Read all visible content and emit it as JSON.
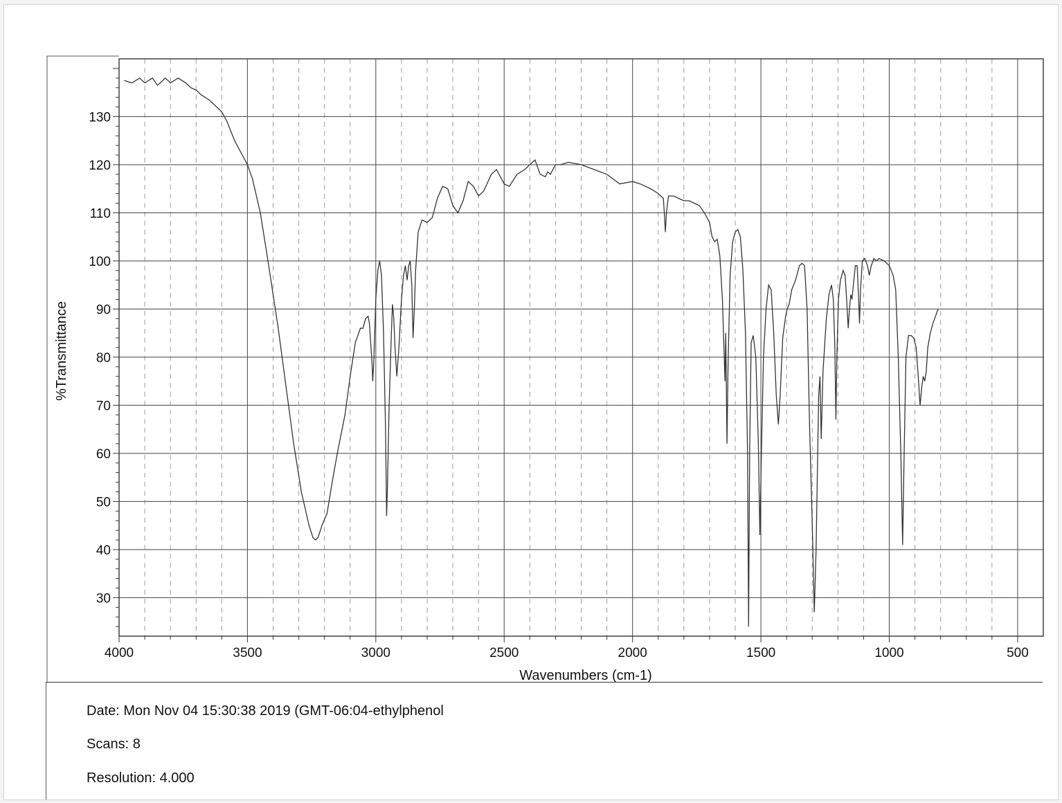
{
  "chart_data": {
    "type": "line",
    "title": "",
    "xlabel": "Wavenumbers (cm-1)",
    "ylabel": "%Transmittance",
    "xlim": [
      4000,
      400
    ],
    "ylim": [
      22,
      142
    ],
    "x_ticks": [
      4000,
      3500,
      3000,
      2500,
      2000,
      1500,
      1000,
      500
    ],
    "y_ticks": [
      30,
      40,
      50,
      60,
      70,
      80,
      90,
      100,
      110,
      120,
      130
    ],
    "grid": true,
    "x_reversed": true,
    "series": [
      {
        "color": "#333333",
        "points": [
          [
            3980,
            137.5
          ],
          [
            3950,
            137
          ],
          [
            3920,
            138
          ],
          [
            3900,
            137
          ],
          [
            3870,
            138
          ],
          [
            3850,
            136.5
          ],
          [
            3820,
            138
          ],
          [
            3800,
            137
          ],
          [
            3770,
            138
          ],
          [
            3740,
            137
          ],
          [
            3720,
            136
          ],
          [
            3700,
            135.5
          ],
          [
            3680,
            134.5
          ],
          [
            3650,
            133.5
          ],
          [
            3620,
            132
          ],
          [
            3600,
            131
          ],
          [
            3580,
            129
          ],
          [
            3550,
            125
          ],
          [
            3520,
            122
          ],
          [
            3500,
            120
          ],
          [
            3480,
            117
          ],
          [
            3450,
            110
          ],
          [
            3420,
            100
          ],
          [
            3380,
            86
          ],
          [
            3350,
            74
          ],
          [
            3320,
            62
          ],
          [
            3290,
            52
          ],
          [
            3260,
            45
          ],
          [
            3245,
            42.5
          ],
          [
            3235,
            42
          ],
          [
            3225,
            42.5
          ],
          [
            3210,
            45
          ],
          [
            3190,
            47.5
          ],
          [
            3170,
            54
          ],
          [
            3150,
            60
          ],
          [
            3120,
            68
          ],
          [
            3100,
            76
          ],
          [
            3080,
            83
          ],
          [
            3060,
            86
          ],
          [
            3050,
            86
          ],
          [
            3040,
            88
          ],
          [
            3030,
            88.5
          ],
          [
            3025,
            87
          ],
          [
            3020,
            83
          ],
          [
            3015,
            79
          ],
          [
            3012,
            75
          ],
          [
            3008,
            79
          ],
          [
            3000,
            92
          ],
          [
            2992,
            98
          ],
          [
            2985,
            100
          ],
          [
            2978,
            97
          ],
          [
            2970,
            85
          ],
          [
            2962,
            65
          ],
          [
            2958,
            47
          ],
          [
            2955,
            52
          ],
          [
            2948,
            70
          ],
          [
            2940,
            84
          ],
          [
            2935,
            91
          ],
          [
            2930,
            88
          ],
          [
            2925,
            82
          ],
          [
            2918,
            76
          ],
          [
            2910,
            82
          ],
          [
            2900,
            92
          ],
          [
            2892,
            97
          ],
          [
            2885,
            99
          ],
          [
            2878,
            96
          ],
          [
            2872,
            99
          ],
          [
            2866,
            100
          ],
          [
            2860,
            95
          ],
          [
            2855,
            84
          ],
          [
            2850,
            90
          ],
          [
            2845,
            98
          ],
          [
            2835,
            106
          ],
          [
            2820,
            108.5
          ],
          [
            2800,
            108
          ],
          [
            2780,
            109
          ],
          [
            2760,
            113
          ],
          [
            2740,
            115.5
          ],
          [
            2720,
            115
          ],
          [
            2700,
            111.5
          ],
          [
            2680,
            110
          ],
          [
            2660,
            112.5
          ],
          [
            2640,
            116.5
          ],
          [
            2620,
            115.5
          ],
          [
            2600,
            113.5
          ],
          [
            2580,
            114.5
          ],
          [
            2550,
            118
          ],
          [
            2530,
            119
          ],
          [
            2500,
            116
          ],
          [
            2480,
            115.5
          ],
          [
            2450,
            118
          ],
          [
            2420,
            119
          ],
          [
            2400,
            120
          ],
          [
            2380,
            121
          ],
          [
            2360,
            118
          ],
          [
            2340,
            117.5
          ],
          [
            2330,
            118.5
          ],
          [
            2320,
            118
          ],
          [
            2300,
            120
          ],
          [
            2280,
            120
          ],
          [
            2250,
            120.5
          ],
          [
            2200,
            120
          ],
          [
            2150,
            119
          ],
          [
            2100,
            118
          ],
          [
            2050,
            116
          ],
          [
            2000,
            116.5
          ],
          [
            1970,
            116
          ],
          [
            1950,
            115.5
          ],
          [
            1930,
            115
          ],
          [
            1900,
            114
          ],
          [
            1880,
            113
          ],
          [
            1875,
            109
          ],
          [
            1872,
            106
          ],
          [
            1868,
            110
          ],
          [
            1860,
            113.5
          ],
          [
            1840,
            113.5
          ],
          [
            1820,
            113
          ],
          [
            1800,
            112.5
          ],
          [
            1780,
            112.5
          ],
          [
            1760,
            112
          ],
          [
            1740,
            111.5
          ],
          [
            1720,
            110
          ],
          [
            1700,
            108
          ],
          [
            1690,
            105
          ],
          [
            1680,
            104
          ],
          [
            1670,
            104.5
          ],
          [
            1660,
            101
          ],
          [
            1650,
            92
          ],
          [
            1640,
            75
          ],
          [
            1637,
            85
          ],
          [
            1632,
            62
          ],
          [
            1628,
            78
          ],
          [
            1620,
            97
          ],
          [
            1610,
            104
          ],
          [
            1600,
            106
          ],
          [
            1590,
            106.5
          ],
          [
            1580,
            105
          ],
          [
            1570,
            98
          ],
          [
            1560,
            85
          ],
          [
            1552,
            60
          ],
          [
            1548,
            24
          ],
          [
            1544,
            60
          ],
          [
            1538,
            83
          ],
          [
            1530,
            84.5
          ],
          [
            1520,
            80
          ],
          [
            1510,
            62
          ],
          [
            1504,
            43
          ],
          [
            1498,
            60
          ],
          [
            1490,
            80
          ],
          [
            1480,
            90
          ],
          [
            1470,
            95
          ],
          [
            1460,
            94
          ],
          [
            1450,
            85
          ],
          [
            1440,
            72
          ],
          [
            1432,
            66
          ],
          [
            1425,
            72
          ],
          [
            1415,
            84
          ],
          [
            1405,
            88
          ],
          [
            1398,
            90
          ],
          [
            1390,
            91
          ],
          [
            1380,
            94
          ],
          [
            1365,
            96
          ],
          [
            1350,
            99
          ],
          [
            1340,
            99.5
          ],
          [
            1330,
            99
          ],
          [
            1320,
            90
          ],
          [
            1310,
            65
          ],
          [
            1300,
            45
          ],
          [
            1292,
            27
          ],
          [
            1285,
            40
          ],
          [
            1275,
            72
          ],
          [
            1270,
            76
          ],
          [
            1265,
            63
          ],
          [
            1258,
            77
          ],
          [
            1245,
            88
          ],
          [
            1235,
            93
          ],
          [
            1225,
            95
          ],
          [
            1218,
            92
          ],
          [
            1212,
            82
          ],
          [
            1208,
            67
          ],
          [
            1204,
            80
          ],
          [
            1198,
            92
          ],
          [
            1190,
            96
          ],
          [
            1180,
            98
          ],
          [
            1172,
            97
          ],
          [
            1166,
            92
          ],
          [
            1160,
            86
          ],
          [
            1155,
            90
          ],
          [
            1150,
            93
          ],
          [
            1145,
            92
          ],
          [
            1140,
            95
          ],
          [
            1132,
            99
          ],
          [
            1125,
            99
          ],
          [
            1120,
            93
          ],
          [
            1116,
            87
          ],
          [
            1112,
            94
          ],
          [
            1105,
            100
          ],
          [
            1095,
            100.5
          ],
          [
            1085,
            99
          ],
          [
            1078,
            97
          ],
          [
            1070,
            99
          ],
          [
            1060,
            100.5
          ],
          [
            1050,
            100
          ],
          [
            1040,
            100.5
          ],
          [
            1020,
            100
          ],
          [
            1000,
            99
          ],
          [
            985,
            97
          ],
          [
            975,
            94
          ],
          [
            965,
            80
          ],
          [
            955,
            60
          ],
          [
            948,
            41
          ],
          [
            942,
            60
          ],
          [
            935,
            80
          ],
          [
            925,
            84.5
          ],
          [
            915,
            84.5
          ],
          [
            905,
            84
          ],
          [
            895,
            82
          ],
          [
            886,
            75
          ],
          [
            880,
            70
          ],
          [
            873,
            74
          ],
          [
            868,
            76
          ],
          [
            862,
            75
          ],
          [
            856,
            77
          ],
          [
            850,
            82
          ],
          [
            840,
            85
          ],
          [
            830,
            87
          ],
          [
            820,
            88.5
          ],
          [
            810,
            90
          ]
        ]
      }
    ]
  },
  "footer": {
    "date": "Date: Mon Nov 04 15:30:38 2019 (GMT-06:04-ethylphenol",
    "scans": "Scans: 8",
    "resolution": "Resolution:  4.000"
  }
}
